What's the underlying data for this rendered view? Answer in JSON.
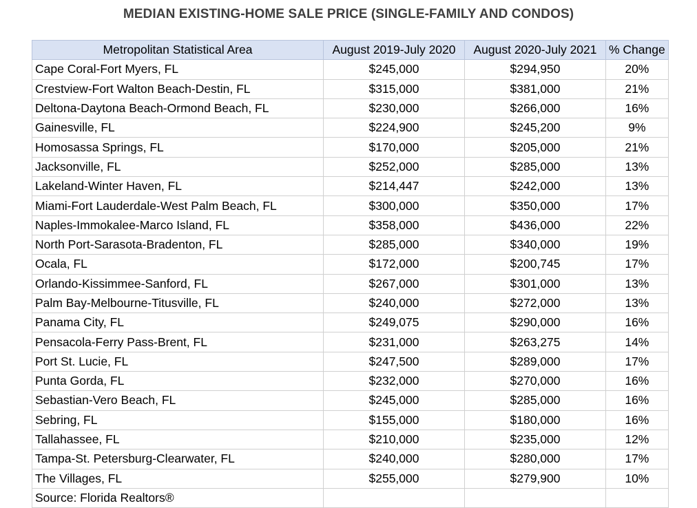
{
  "title": "MEDIAN EXISTING-HOME SALE PRICE (SINGLE-FAMILY AND CONDOS)",
  "headers": [
    "Metropolitan Statistical Area",
    "August 2019-July 2020",
    "August 2020-July 2021",
    "% Change"
  ],
  "rows": [
    [
      "Cape Coral-Fort Myers, FL",
      "$245,000",
      "$294,950",
      "20%"
    ],
    [
      "Crestview-Fort Walton Beach-Destin, FL",
      "$315,000",
      "$381,000",
      "21%"
    ],
    [
      "Deltona-Daytona Beach-Ormond Beach, FL",
      "$230,000",
      "$266,000",
      "16%"
    ],
    [
      "Gainesville, FL",
      "$224,900",
      "$245,200",
      "9%"
    ],
    [
      "Homosassa Springs, FL",
      "$170,000",
      "$205,000",
      "21%"
    ],
    [
      "Jacksonville, FL",
      "$252,000",
      "$285,000",
      "13%"
    ],
    [
      "Lakeland-Winter Haven, FL",
      "$214,447",
      "$242,000",
      "13%"
    ],
    [
      "Miami-Fort Lauderdale-West Palm Beach, FL",
      "$300,000",
      "$350,000",
      "17%"
    ],
    [
      "Naples-Immokalee-Marco Island, FL",
      "$358,000",
      "$436,000",
      "22%"
    ],
    [
      "North Port-Sarasota-Bradenton, FL",
      "$285,000",
      "$340,000",
      "19%"
    ],
    [
      "Ocala, FL",
      "$172,000",
      "$200,745",
      "17%"
    ],
    [
      "Orlando-Kissimmee-Sanford, FL",
      "$267,000",
      "$301,000",
      "13%"
    ],
    [
      "Palm Bay-Melbourne-Titusville, FL",
      "$240,000",
      "$272,000",
      "13%"
    ],
    [
      "Panama City, FL",
      "$249,075",
      "$290,000",
      "16%"
    ],
    [
      "Pensacola-Ferry Pass-Brent, FL",
      "$231,000",
      "$263,275",
      "14%"
    ],
    [
      "Port St. Lucie, FL",
      "$247,500",
      "$289,000",
      "17%"
    ],
    [
      "Punta Gorda, FL",
      "$232,000",
      "$270,000",
      "16%"
    ],
    [
      "Sebastian-Vero Beach, FL",
      "$245,000",
      "$285,000",
      "16%"
    ],
    [
      "Sebring, FL",
      "$155,000",
      "$180,000",
      "16%"
    ],
    [
      "Tallahassee, FL",
      "$210,000",
      "$235,000",
      "12%"
    ],
    [
      "Tampa-St. Petersburg-Clearwater, FL",
      "$240,000",
      "$280,000",
      "17%"
    ],
    [
      "The Villages, FL",
      "$255,000",
      "$279,900",
      "10%"
    ]
  ],
  "source": "Source: Florida Realtors®"
}
